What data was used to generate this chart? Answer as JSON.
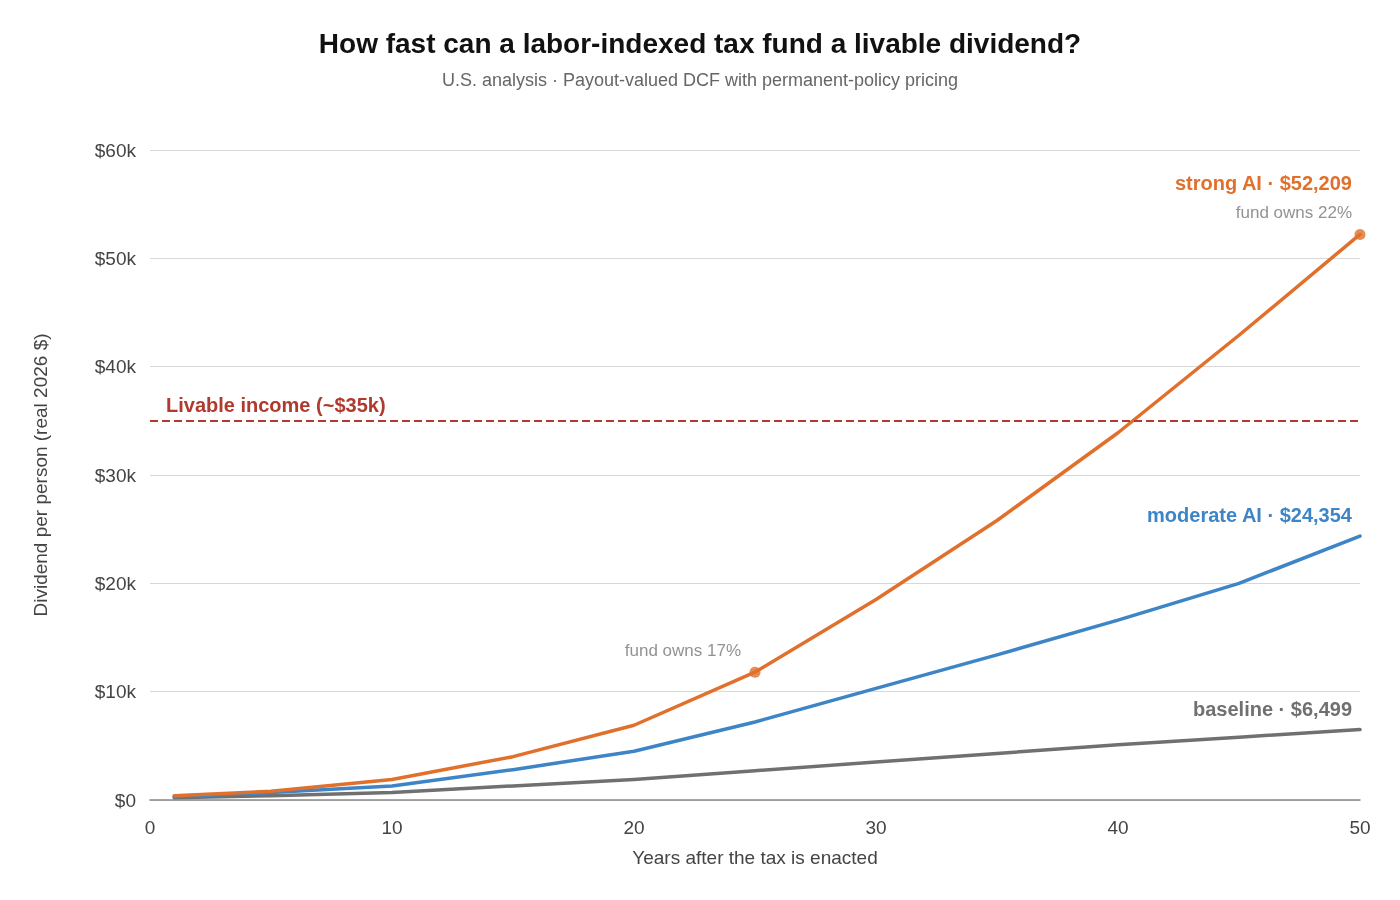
{
  "chart_data": {
    "type": "line",
    "title": "How fast can a labor-indexed tax fund a livable dividend?",
    "subtitle": "U.S. analysis · Payout-valued DCF with permanent-policy pricing",
    "xlabel": "Years after the tax is enacted",
    "ylabel": "Dividend per person (real 2026 $)",
    "x": [
      1,
      5,
      10,
      15,
      20,
      25,
      30,
      35,
      40,
      45,
      50
    ],
    "series": [
      {
        "name": "baseline · $6,499",
        "color": "#707070",
        "values": [
          200,
          400,
          700,
          1300,
          1900,
          2700,
          3500,
          4300,
          5100,
          5800,
          6499
        ]
      },
      {
        "name": "moderate AI · $24,354",
        "color": "#3d85c6",
        "values": [
          300,
          700,
          1300,
          2800,
          4500,
          7200,
          10300,
          13400,
          16600,
          20000,
          24354
        ]
      },
      {
        "name": "strong AI · $52,209",
        "color": "#e0702c",
        "values": [
          400,
          800,
          1900,
          4000,
          6900,
          11800,
          18500,
          25800,
          33900,
          42900,
          52209
        ]
      },
      {
        "type": "scatter",
        "marker": "circle",
        "color": "#e0702c",
        "x": [
          25,
          50
        ],
        "values": [
          11800,
          52209
        ]
      }
    ],
    "annotations": [
      {
        "text": "fund owns 17%",
        "x": 25,
        "y": 11800
      },
      {
        "text": "fund owns 22%",
        "x": 50,
        "y": 52209
      }
    ],
    "ref_lines": [
      {
        "axis": "y",
        "value": 35000,
        "label": "Livable income (~$35k)",
        "color": "#b03a2e",
        "line_style": "dashed"
      }
    ],
    "xlim": [
      0,
      50
    ],
    "xticks": [
      0,
      10,
      20,
      30,
      40,
      50
    ],
    "ylim": [
      0,
      60000
    ],
    "yticks": [
      {
        "value": 0,
        "label": "$0"
      },
      {
        "value": 10000,
        "label": "$10k"
      },
      {
        "value": 20000,
        "label": "$20k"
      },
      {
        "value": 30000,
        "label": "$30k"
      },
      {
        "value": 40000,
        "label": "$40k"
      },
      {
        "value": 50000,
        "label": "$50k"
      },
      {
        "value": 60000,
        "label": "$60k"
      }
    ],
    "grid": "y",
    "legend": false,
    "marker": "none",
    "line_style": "solid"
  }
}
